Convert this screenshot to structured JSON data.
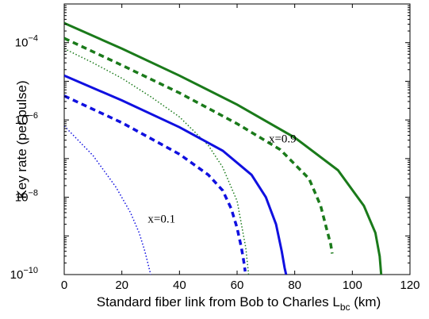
{
  "chart_data": {
    "type": "line",
    "xlabel_main": "Standard fiber link from Bob to Charles L",
    "xlabel_sub": "bc",
    "xlabel_unit": " (km)",
    "ylabel": "Key rate (per pulse)",
    "xlim": [
      0,
      120
    ],
    "ylim": [
      1e-10,
      0.001
    ],
    "yscale": "log",
    "grid": false,
    "x_ticks": [
      0,
      20,
      40,
      60,
      80,
      100,
      120
    ],
    "y_ticks": [
      {
        "value": 1e-10,
        "base": "10",
        "exp": "−10"
      },
      {
        "value": 1e-08,
        "base": "10",
        "exp": "−8"
      },
      {
        "value": 1e-06,
        "base": "10",
        "exp": "−6"
      },
      {
        "value": 0.0001,
        "base": "10",
        "exp": "−4"
      }
    ],
    "annotations": [
      {
        "text": "x=0.9",
        "x": 71,
        "y": 2.6e-07
      },
      {
        "text": "x=0.1",
        "x": 29,
        "y": 2.2e-09
      }
    ],
    "colors": {
      "green": "#1a7a1a",
      "blue": "#1010e0"
    },
    "series": [
      {
        "color": "#1a7a1a",
        "style": "solid",
        "x": [
          0,
          20,
          40,
          60,
          80,
          95,
          104,
          108,
          109.5,
          110
        ],
        "y": [
          0.00032,
          7e-05,
          1.4e-05,
          2.5e-06,
          3.5e-07,
          5e-08,
          6e-09,
          1.2e-09,
          3e-10,
          1e-10
        ]
      },
      {
        "color": "#1a7a1a",
        "style": "dashed",
        "x": [
          0,
          20,
          40,
          60,
          75,
          85,
          89,
          91,
          92.5,
          93
        ],
        "y": [
          0.00013,
          2.6e-05,
          5e-06,
          8e-07,
          1.7e-07,
          3e-08,
          6e-09,
          1.6e-09,
          6e-10,
          3.5e-10
        ]
      },
      {
        "color": "#1a7a1a",
        "style": "dotted",
        "x": [
          0,
          10,
          20,
          30,
          40,
          50,
          55,
          60,
          63,
          64
        ],
        "y": [
          7e-05,
          3e-05,
          1.2e-05,
          4e-06,
          1.2e-06,
          2.2e-07,
          6e-08,
          8e-09,
          5e-10,
          1e-10
        ]
      },
      {
        "color": "#1010e0",
        "style": "solid",
        "x": [
          0,
          20,
          40,
          55,
          65,
          70,
          73.5,
          75.5,
          76.5,
          77
        ],
        "y": [
          1.4e-05,
          3.2e-06,
          6.5e-07,
          1.6e-07,
          3.8e-08,
          1e-08,
          2e-09,
          4e-10,
          1.5e-10,
          1e-10
        ]
      },
      {
        "color": "#1010e0",
        "style": "dashed",
        "x": [
          0,
          20,
          40,
          50,
          55,
          58,
          60,
          61.5,
          62.3,
          62.8
        ],
        "y": [
          4.2e-06,
          8.5e-07,
          1.3e-07,
          3.8e-08,
          1.5e-08,
          5e-09,
          1.6e-09,
          5e-10,
          2.2e-10,
          1.2e-10
        ]
      },
      {
        "color": "#1010e0",
        "style": "dotted",
        "x": [
          0,
          10,
          18,
          23,
          26,
          28,
          29,
          30
        ],
        "y": [
          7e-07,
          1.2e-07,
          1.8e-08,
          4e-09,
          1.2e-09,
          4e-10,
          2e-10,
          1e-10
        ]
      }
    ]
  }
}
